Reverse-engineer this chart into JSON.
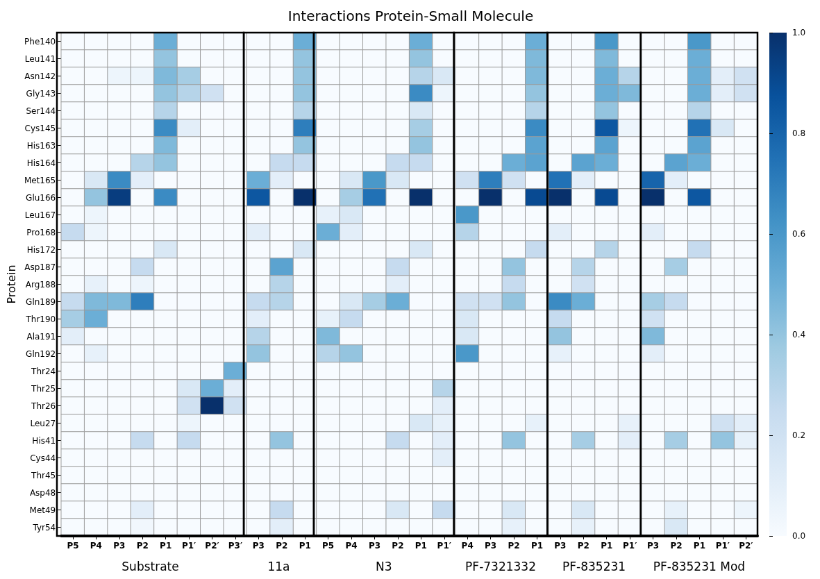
{
  "chart_data": {
    "type": "heatmap",
    "title": "Interactions Protein-Small Molecule",
    "ylabel": "Protein",
    "categories": [
      "P5",
      "P4",
      "P3",
      "P2",
      "P1",
      "P1′",
      "P2′",
      "P3′",
      "P3",
      "P2",
      "P1",
      "P5",
      "P4",
      "P3",
      "P2",
      "P1",
      "P1′",
      "P4",
      "P3",
      "P2",
      "P1",
      "P3",
      "P2",
      "P1",
      "P1′",
      "P3",
      "P2",
      "P1",
      "P1′",
      "P2′"
    ],
    "annotations": [
      "Substrate",
      "11a",
      "N3",
      "PF-7321332",
      "PF-835231",
      "PF-835231 Mod"
    ],
    "y_categories": [
      "Phe140",
      "Leu141",
      "Asn142",
      "Gly143",
      "Ser144",
      "Cys145",
      "His163",
      "His164",
      "Met165",
      "Glu166",
      "Leu167",
      "Pro168",
      "His172",
      "Asp187",
      "Arg188",
      "Gln189",
      "Thr190",
      "Ala191",
      "Gln192",
      "Thr24",
      "Thr25",
      "Thr26",
      "Leu27",
      "His41",
      "Cys44",
      "Thr45",
      "Asp48",
      "Met49",
      "Tyr54"
    ],
    "clim": [
      0,
      1
    ],
    "cticks": [
      {
        "value": 0,
        "label": "0.0"
      },
      0.2,
      0.4,
      0.6,
      0.8,
      {
        "value": 1,
        "label": "1.0"
      }
    ],
    "cells": [
      [
        0,
        0,
        0,
        0,
        0.5,
        0,
        0,
        0,
        0,
        0,
        0.5,
        0,
        0,
        0,
        0,
        0.5,
        0,
        0,
        0,
        0,
        0.5,
        0,
        0,
        0.6,
        0,
        0,
        0,
        0.6,
        0,
        0
      ],
      [
        0,
        0,
        0,
        0,
        0.4,
        0,
        0,
        0,
        0,
        0,
        0.4,
        0,
        0,
        0,
        0,
        0.4,
        0,
        0,
        0,
        0,
        0.45,
        0,
        0,
        0.45,
        0,
        0,
        0,
        0.5,
        0,
        0
      ],
      [
        0,
        0,
        0.05,
        0.05,
        0.45,
        0.35,
        0,
        0,
        0,
        0,
        0.4,
        0,
        0,
        0,
        0,
        0.3,
        0.15,
        0,
        0,
        0,
        0.45,
        0,
        0,
        0.5,
        0.3,
        0,
        0,
        0.5,
        0.1,
        0.2
      ],
      [
        0,
        0,
        0,
        0,
        0.4,
        0.3,
        0.2,
        0,
        0,
        0,
        0.4,
        0,
        0,
        0,
        0,
        0.65,
        0.05,
        0,
        0,
        0,
        0.4,
        0,
        0,
        0.5,
        0.45,
        0,
        0,
        0.5,
        0.1,
        0.2
      ],
      [
        0,
        0,
        0,
        0,
        0.3,
        0,
        0,
        0,
        0,
        0,
        0.3,
        0,
        0,
        0,
        0,
        0.15,
        0,
        0,
        0,
        0,
        0.3,
        0,
        0,
        0.4,
        0,
        0,
        0,
        0.3,
        0,
        0
      ],
      [
        0,
        0,
        0,
        0,
        0.65,
        0.1,
        0,
        0,
        0,
        0,
        0.7,
        0,
        0,
        0,
        0,
        0.35,
        0,
        0,
        0,
        0,
        0.65,
        0,
        0,
        0.85,
        0.05,
        0,
        0,
        0.75,
        0.15,
        0
      ],
      [
        0,
        0,
        0,
        0,
        0.45,
        0,
        0,
        0,
        0,
        0,
        0.4,
        0,
        0,
        0,
        0,
        0.4,
        0,
        0,
        0,
        0,
        0.55,
        0,
        0,
        0.55,
        0,
        0,
        0,
        0.55,
        0,
        0
      ],
      [
        0,
        0,
        0,
        0.3,
        0.4,
        0,
        0,
        0,
        0,
        0.25,
        0.25,
        0,
        0,
        0,
        0.25,
        0.25,
        0,
        0,
        0,
        0.5,
        0.55,
        0,
        0.55,
        0.5,
        0,
        0,
        0.55,
        0.5,
        0,
        0
      ],
      [
        0,
        0.15,
        0.65,
        0.1,
        0,
        0,
        0,
        0,
        0.5,
        0.1,
        0,
        0,
        0.15,
        0.6,
        0.15,
        0,
        0,
        0.2,
        0.7,
        0.2,
        0,
        0.75,
        0.1,
        0,
        0,
        0.8,
        0.1,
        0,
        0,
        0
      ],
      [
        0,
        0.4,
        0.95,
        0,
        0.65,
        0,
        0,
        0,
        0.85,
        0,
        1.0,
        0,
        0.35,
        0.75,
        0,
        1.0,
        0,
        0,
        1.0,
        0,
        0.9,
        1.0,
        0,
        0.9,
        0,
        1.0,
        0,
        0.85,
        0,
        0
      ],
      [
        0,
        0.05,
        0,
        0,
        0,
        0,
        0,
        0,
        0,
        0,
        0,
        0.08,
        0.15,
        0,
        0,
        0,
        0,
        0.6,
        0,
        0,
        0,
        0,
        0,
        0,
        0,
        0,
        0,
        0,
        0,
        0
      ],
      [
        0.25,
        0.05,
        0,
        0,
        0,
        0,
        0,
        0,
        0.1,
        0,
        0,
        0.5,
        0.1,
        0,
        0,
        0,
        0,
        0.3,
        0,
        0,
        0,
        0.1,
        0,
        0,
        0,
        0.1,
        0,
        0,
        0,
        0
      ],
      [
        0,
        0,
        0,
        0,
        0.15,
        0,
        0,
        0,
        0,
        0,
        0.15,
        0,
        0,
        0,
        0,
        0.15,
        0,
        0,
        0,
        0,
        0.25,
        0,
        0,
        0.3,
        0,
        0,
        0,
        0.25,
        0,
        0
      ],
      [
        0,
        0,
        0,
        0.25,
        0,
        0,
        0,
        0,
        0,
        0.55,
        0,
        0,
        0,
        0,
        0.25,
        0,
        0,
        0,
        0,
        0.4,
        0,
        0,
        0.3,
        0,
        0,
        0,
        0.35,
        0,
        0,
        0
      ],
      [
        0,
        0.08,
        0,
        0.05,
        0,
        0,
        0,
        0,
        0,
        0.3,
        0,
        0,
        0,
        0,
        0.1,
        0,
        0,
        0,
        0,
        0.25,
        0,
        0,
        0.2,
        0,
        0,
        0,
        0,
        0,
        0,
        0
      ],
      [
        0.25,
        0.45,
        0.45,
        0.7,
        0,
        0,
        0,
        0,
        0.25,
        0.3,
        0,
        0,
        0.15,
        0.35,
        0.5,
        0,
        0,
        0.2,
        0.2,
        0.4,
        0,
        0.65,
        0.5,
        0,
        0,
        0.35,
        0.25,
        0,
        0,
        0
      ],
      [
        0.35,
        0.5,
        0,
        0,
        0,
        0,
        0,
        0,
        0.1,
        0,
        0,
        0.08,
        0.25,
        0,
        0,
        0,
        0,
        0.15,
        0,
        0,
        0,
        0.25,
        0,
        0,
        0,
        0.2,
        0,
        0,
        0,
        0
      ],
      [
        0.1,
        0,
        0,
        0,
        0,
        0,
        0,
        0,
        0.3,
        0,
        0,
        0.45,
        0,
        0,
        0,
        0,
        0,
        0.15,
        0,
        0,
        0,
        0.4,
        0,
        0,
        0,
        0.45,
        0,
        0,
        0,
        0
      ],
      [
        0,
        0.08,
        0,
        0,
        0,
        0,
        0,
        0,
        0.4,
        0,
        0,
        0.3,
        0.4,
        0,
        0,
        0,
        0,
        0.6,
        0,
        0,
        0,
        0.08,
        0,
        0,
        0,
        0.1,
        0,
        0,
        0,
        0
      ],
      [
        0,
        0,
        0,
        0,
        0,
        0,
        0,
        0.5,
        0,
        0,
        0,
        0,
        0,
        0,
        0,
        0,
        0,
        0,
        0,
        0,
        0,
        0,
        0,
        0,
        0,
        0,
        0,
        0,
        0,
        0
      ],
      [
        0,
        0,
        0,
        0,
        0,
        0.15,
        0.5,
        0.1,
        0,
        0,
        0,
        0,
        0,
        0,
        0,
        0,
        0.3,
        0,
        0,
        0,
        0,
        0,
        0,
        0,
        0,
        0,
        0,
        0,
        0,
        0
      ],
      [
        0,
        0,
        0,
        0,
        0,
        0.2,
        1.0,
        0.2,
        0,
        0,
        0,
        0,
        0,
        0,
        0,
        0,
        0.1,
        0,
        0,
        0,
        0,
        0,
        0,
        0,
        0,
        0,
        0,
        0,
        0,
        0
      ],
      [
        0,
        0,
        0,
        0,
        0,
        0.05,
        0,
        0,
        0,
        0,
        0,
        0,
        0,
        0,
        0,
        0.15,
        0.08,
        0,
        0,
        0,
        0.08,
        0,
        0,
        0,
        0.08,
        0,
        0,
        0,
        0.2,
        0.1
      ],
      [
        0,
        0,
        0,
        0.25,
        0,
        0.25,
        0,
        0,
        0,
        0.4,
        0,
        0,
        0,
        0,
        0.25,
        0,
        0.1,
        0,
        0,
        0.4,
        0,
        0,
        0.35,
        0,
        0.1,
        0,
        0.35,
        0,
        0.4,
        0.08
      ],
      [
        0,
        0,
        0,
        0,
        0,
        0,
        0,
        0,
        0,
        0,
        0,
        0,
        0,
        0,
        0,
        0,
        0.1,
        0,
        0,
        0,
        0,
        0,
        0,
        0,
        0,
        0,
        0,
        0,
        0,
        0
      ],
      [
        0,
        0,
        0,
        0,
        0,
        0,
        0,
        0,
        0,
        0,
        0,
        0,
        0,
        0,
        0,
        0,
        0,
        0,
        0,
        0,
        0,
        0,
        0,
        0,
        0,
        0,
        0,
        0,
        0,
        0
      ],
      [
        0,
        0,
        0,
        0,
        0,
        0,
        0,
        0,
        0,
        0,
        0,
        0,
        0,
        0,
        0,
        0,
        0,
        0,
        0,
        0,
        0,
        0,
        0,
        0,
        0,
        0,
        0,
        0,
        0,
        0
      ],
      [
        0,
        0,
        0,
        0.1,
        0,
        0,
        0,
        0,
        0,
        0.25,
        0,
        0,
        0,
        0,
        0.15,
        0,
        0.25,
        0,
        0,
        0.15,
        0,
        0,
        0.15,
        0,
        0,
        0,
        0.08,
        0,
        0,
        0.05
      ],
      [
        0,
        0,
        0,
        0.03,
        0,
        0,
        0,
        0,
        0,
        0.1,
        0,
        0,
        0,
        0,
        0,
        0,
        0,
        0,
        0,
        0.08,
        0,
        0,
        0.08,
        0,
        0,
        0,
        0.15,
        0,
        0,
        0
      ]
    ]
  }
}
